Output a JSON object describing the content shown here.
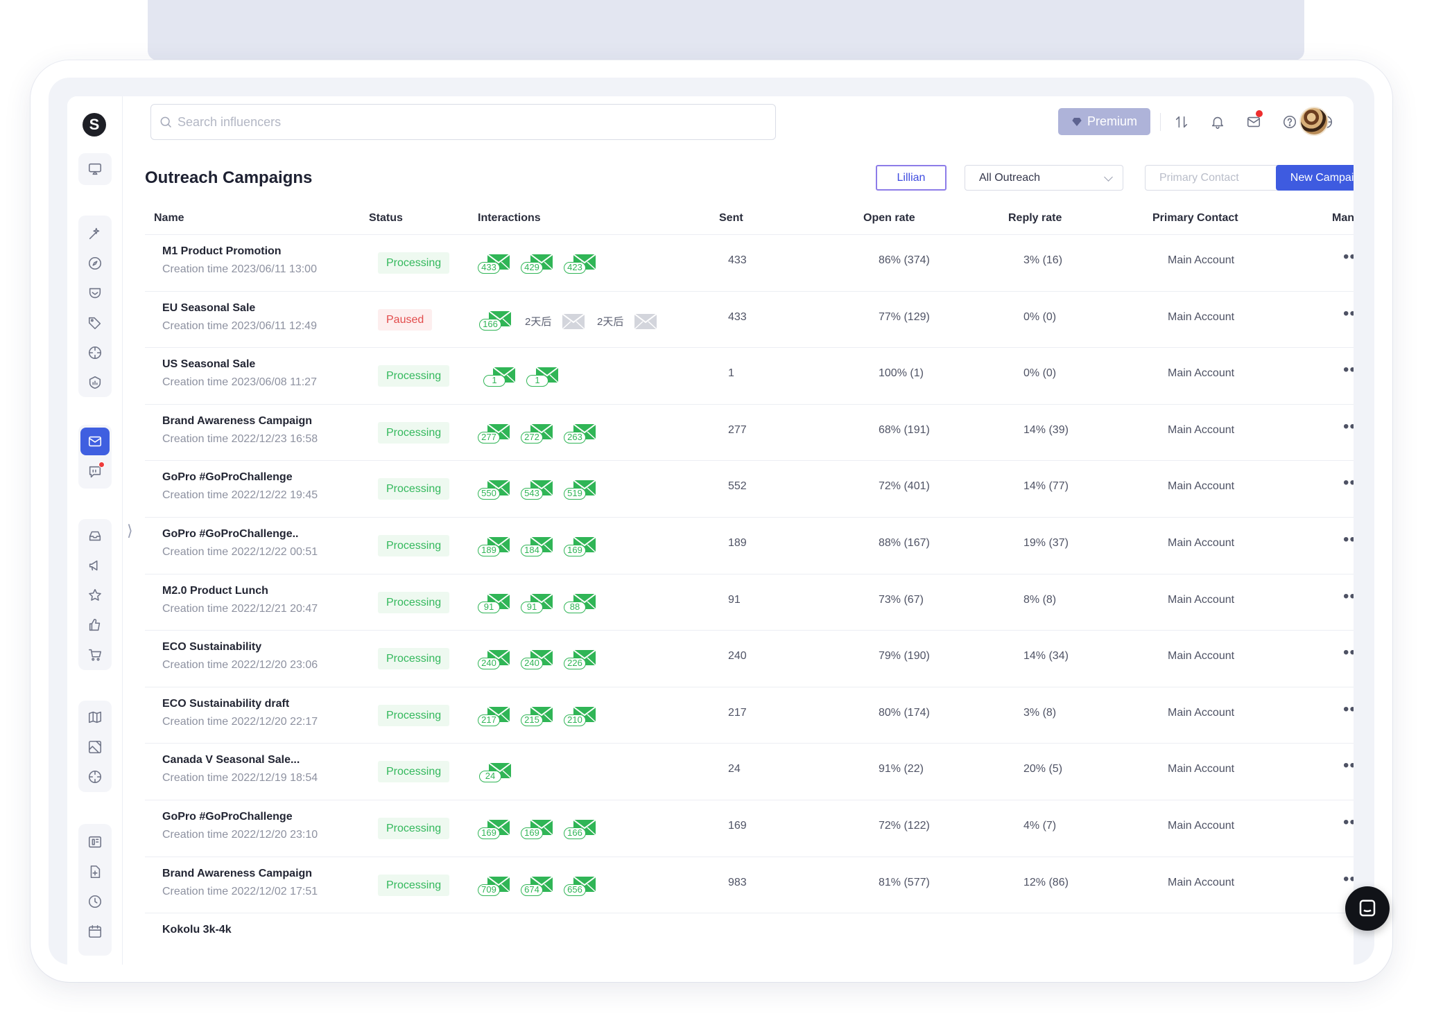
{
  "app": {
    "logo_letter": "S",
    "search_placeholder": "Search influencers",
    "premium_label": "Premium"
  },
  "page": {
    "title": "Outreach Campaigns",
    "user_filter": "Lillian",
    "outreach_filter": "All Outreach",
    "contact_filter_placeholder": "Primary Contact",
    "new_campaign_label": "New Campaign"
  },
  "table": {
    "headers": {
      "name": "Name",
      "status": "Status",
      "interactions": "Interactions",
      "sent": "Sent",
      "open_rate": "Open rate",
      "reply_rate": "Reply rate",
      "primary_contact": "Primary Contact",
      "manage": "Manage"
    },
    "rows": [
      {
        "name": "M1 Product Promotion",
        "time": "Creation time 2023/06/11 13:00",
        "status": "Processing",
        "status_kind": "processing",
        "emails": [
          "433",
          "429",
          "423"
        ],
        "waits": [],
        "sent": "433",
        "open_rate": "86% (374)",
        "reply_rate": "3% (16)",
        "contact": "Main Account"
      },
      {
        "name": "EU Seasonal Sale",
        "time": "Creation time 2023/06/11 12:49",
        "status": "Paused",
        "status_kind": "paused",
        "emails": [
          "166"
        ],
        "waits": [
          "2天后",
          "2天后"
        ],
        "sent": "433",
        "open_rate": "77% (129)",
        "reply_rate": "0% (0)",
        "contact": "Main Account"
      },
      {
        "name": "US Seasonal Sale",
        "time": "Creation time 2023/06/08 11:27",
        "status": "Processing",
        "status_kind": "processing",
        "emails": [
          "1",
          "1"
        ],
        "waits": [],
        "sent": "1",
        "open_rate": "100% (1)",
        "reply_rate": "0% (0)",
        "contact": "Main Account"
      },
      {
        "name": "Brand Awareness Campaign",
        "time": "Creation time 2022/12/23 16:58",
        "status": "Processing",
        "status_kind": "processing",
        "emails": [
          "277",
          "272",
          "263"
        ],
        "waits": [],
        "sent": "277",
        "open_rate": "68% (191)",
        "reply_rate": "14% (39)",
        "contact": "Main Account"
      },
      {
        "name": "GoPro #GoProChallenge",
        "time": "Creation time 2022/12/22 19:45",
        "status": "Processing",
        "status_kind": "processing",
        "emails": [
          "550",
          "543",
          "519"
        ],
        "waits": [],
        "sent": "552",
        "open_rate": "72% (401)",
        "reply_rate": "14% (77)",
        "contact": "Main Account"
      },
      {
        "name": "GoPro #GoProChallenge..",
        "time": "Creation time 2022/12/22 00:51",
        "status": "Processing",
        "status_kind": "processing",
        "emails": [
          "189",
          "184",
          "169"
        ],
        "waits": [],
        "sent": "189",
        "open_rate": "88% (167)",
        "reply_rate": "19% (37)",
        "contact": "Main Account"
      },
      {
        "name": "M2.0 Product Lunch",
        "time": "Creation time 2022/12/21 20:47",
        "status": "Processing",
        "status_kind": "processing",
        "emails": [
          "91",
          "91",
          "88"
        ],
        "waits": [],
        "sent": "91",
        "open_rate": "73% (67)",
        "reply_rate": "8% (8)",
        "contact": "Main Account"
      },
      {
        "name": "ECO Sustainability",
        "time": "Creation time 2022/12/20 23:06",
        "status": "Processing",
        "status_kind": "processing",
        "emails": [
          "240",
          "240",
          "226"
        ],
        "waits": [],
        "sent": "240",
        "open_rate": "79% (190)",
        "reply_rate": "14% (34)",
        "contact": "Main Account"
      },
      {
        "name": "ECO Sustainability draft",
        "time": "Creation time 2022/12/20 22:17",
        "status": "Processing",
        "status_kind": "processing",
        "emails": [
          "217",
          "215",
          "210"
        ],
        "waits": [],
        "sent": "217",
        "open_rate": "80% (174)",
        "reply_rate": "3% (8)",
        "contact": "Main Account"
      },
      {
        "name": "Canada V Seasonal Sale...",
        "time": "Creation time 2022/12/19 18:54",
        "status": "Processing",
        "status_kind": "processing",
        "emails": [
          "24"
        ],
        "waits": [],
        "sent": "24",
        "open_rate": "91% (22)",
        "reply_rate": "20% (5)",
        "contact": "Main Account"
      },
      {
        "name": "GoPro #GoProChallenge",
        "time": "Creation time 2022/12/20 23:10",
        "status": "Processing",
        "status_kind": "processing",
        "emails": [
          "169",
          "169",
          "166"
        ],
        "waits": [],
        "sent": "169",
        "open_rate": "72% (122)",
        "reply_rate": "4% (7)",
        "contact": "Main Account"
      },
      {
        "name": "Brand Awareness Campaign",
        "time": "Creation time 2022/12/02 17:51",
        "status": "Processing",
        "status_kind": "processing",
        "emails": [
          "709",
          "674",
          "656"
        ],
        "waits": [],
        "sent": "983",
        "open_rate": "81% (577)",
        "reply_rate": "12% (86)",
        "contact": "Main Account"
      },
      {
        "name": "Kokolu 3k-4k",
        "time": "",
        "status": "",
        "status_kind": "",
        "emails": [],
        "waits": [],
        "sent": "",
        "open_rate": "",
        "reply_rate": "",
        "contact": ""
      }
    ]
  },
  "icons": {
    "sidebar": [
      "monitor-icon",
      "magic-wand-icon",
      "compass-icon",
      "pocket-icon",
      "tag-icon",
      "crosshair-icon",
      "shield-chart-icon",
      "mail-icon",
      "chat-icon",
      "inbox-icon",
      "megaphone-icon",
      "star-icon",
      "thumbs-up-icon",
      "cart-icon",
      "map-icon",
      "image-icon",
      "target-icon",
      "dashboard-icon",
      "file-plus-icon",
      "clock-icon",
      "calendar-icon"
    ],
    "topbar": [
      "sort-icon",
      "bell-icon",
      "mail-icon",
      "help-icon",
      "globe-icon"
    ]
  },
  "colors": {
    "accent": "#3e5be0",
    "processing": "#33b85c",
    "paused": "#e24b4b",
    "premium": "#aeb3d9",
    "user_filter_border": "#8d7ce8"
  }
}
